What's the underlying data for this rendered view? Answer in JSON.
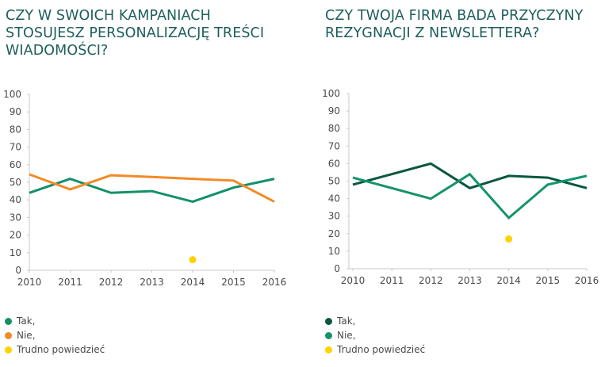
{
  "chart_data": [
    {
      "type": "line",
      "title": "CZY W SWOICH KAMPANIACH STOSUJESZ PERSONALIZACJĘ TREŚCI WIADOMOŚCI?",
      "title_lines": [
        "CZY W SWOICH KAMPANIACH",
        "STOSUJESZ PERSONALIZACJĘ TREŚCI",
        "WIADOMOŚCI?"
      ],
      "xlabel": "",
      "ylabel": "",
      "x": [
        "2010",
        "2011",
        "2012",
        "2013",
        "2014",
        "2015",
        "2016"
      ],
      "yticks": [
        "0",
        "10",
        "20",
        "30",
        "40",
        "50",
        "60",
        "70",
        "80",
        "90",
        "100"
      ],
      "ylim": [
        0,
        100
      ],
      "grid": false,
      "legend_position": "bottom-left",
      "series": [
        {
          "name": "Tak,",
          "color": "#12906a",
          "style": "line",
          "values": [
            44,
            52,
            44,
            45,
            39,
            47,
            52
          ]
        },
        {
          "name": "Nie,",
          "color": "#f28a26",
          "style": "line",
          "values": [
            54.5,
            46,
            54,
            53,
            52,
            51,
            39
          ]
        },
        {
          "name": "Trudno powiedzieć",
          "color": "#ffd200",
          "style": "point",
          "values": [
            null,
            null,
            null,
            null,
            6,
            null,
            null
          ]
        }
      ]
    },
    {
      "type": "line",
      "title": "CZY TWOJA FIRMA BADA PRZYCZYNY REZYGNACJI Z NEWSLETTERA?",
      "title_lines": [
        "CZY TWOJA FIRMA BADA PRZYCZYNY",
        "REZYGNACJI Z NEWSLETTERA?"
      ],
      "xlabel": "",
      "ylabel": "",
      "x": [
        "2010",
        "2011",
        "2012",
        "2013",
        "2014",
        "2015",
        "2016"
      ],
      "yticks": [
        "0",
        "10",
        "20",
        "30",
        "40",
        "50",
        "60",
        "70",
        "80",
        "90",
        "100"
      ],
      "ylim": [
        0,
        100
      ],
      "grid": false,
      "legend_position": "bottom-left",
      "series": [
        {
          "name": "Tak,",
          "color": "#0a573f",
          "style": "line",
          "values": [
            48,
            null,
            60,
            46,
            53,
            52,
            46
          ]
        },
        {
          "name": "Nie,",
          "color": "#14946c",
          "style": "line",
          "values": [
            52,
            null,
            40,
            54,
            29,
            48,
            53
          ]
        },
        {
          "name": "Trudno powiedzieć",
          "color": "#ffd200",
          "style": "point",
          "values": [
            null,
            null,
            null,
            null,
            17,
            null,
            null
          ]
        }
      ]
    }
  ]
}
